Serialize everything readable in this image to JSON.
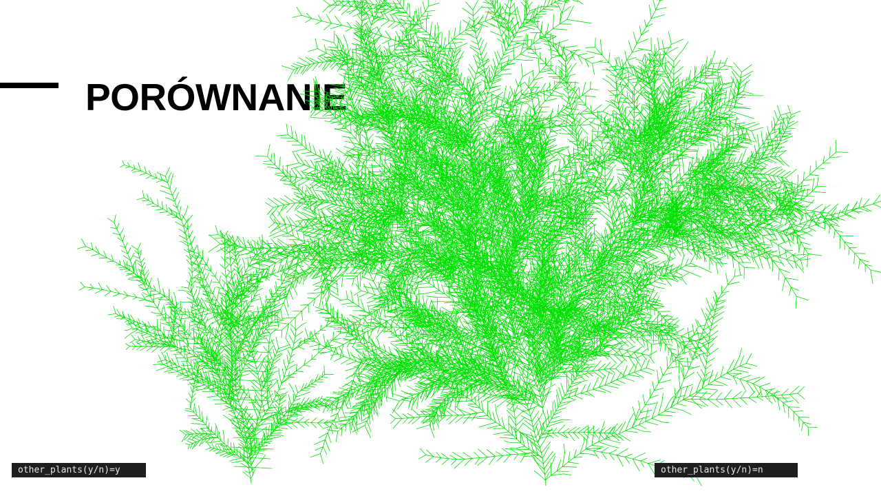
{
  "slide": {
    "title": "PORÓWNANIE"
  },
  "plants": [
    {
      "console_text": "other_plants(y/n)=y",
      "color": "#00e000"
    },
    {
      "console_text": "other_plants(y/n)=n",
      "color": "#00e000"
    }
  ]
}
